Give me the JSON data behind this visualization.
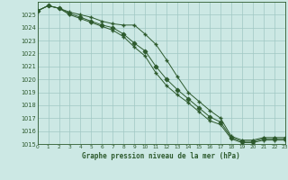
{
  "title": "Graphe pression niveau de la mer (hPa)",
  "bg_color": "#cce8e4",
  "grid_color": "#a0c8c4",
  "line_color": "#2d5a2d",
  "xlim": [
    0,
    23
  ],
  "ylim": [
    1015,
    1026
  ],
  "xtick_labels": [
    "0",
    "1",
    "2",
    "3",
    "4",
    "5",
    "6",
    "7",
    "8",
    "9",
    "10",
    "11",
    "12",
    "13",
    "14",
    "15",
    "16",
    "17",
    "18",
    "19",
    "20",
    "21",
    "22",
    "23"
  ],
  "yticks": [
    1015,
    1016,
    1017,
    1018,
    1019,
    1020,
    1021,
    1022,
    1023,
    1024,
    1025
  ],
  "series": [
    {
      "x": [
        0,
        1,
        2,
        3,
        4,
        5,
        6,
        7,
        8,
        9,
        10,
        11,
        12,
        13,
        14,
        15,
        16,
        17,
        18,
        19,
        20,
        21,
        22,
        23
      ],
      "y": [
        1025.3,
        1025.7,
        1025.5,
        1025.2,
        1025.0,
        1024.8,
        1024.5,
        1024.3,
        1024.2,
        1024.2,
        1023.5,
        1022.7,
        1021.5,
        1020.2,
        1019.0,
        1018.3,
        1017.6,
        1017.0,
        1015.6,
        1015.3,
        1015.3,
        1015.5,
        1015.5,
        1015.5
      ],
      "marker": "+"
    },
    {
      "x": [
        0,
        1,
        2,
        3,
        4,
        5,
        6,
        7,
        8,
        9,
        10,
        11,
        12,
        13,
        14,
        15,
        16,
        17,
        18,
        19,
        20,
        21,
        22,
        23
      ],
      "y": [
        1025.3,
        1025.7,
        1025.5,
        1025.1,
        1024.8,
        1024.5,
        1024.2,
        1024.0,
        1023.5,
        1022.8,
        1022.2,
        1021.0,
        1020.0,
        1019.2,
        1018.5,
        1017.8,
        1017.1,
        1016.7,
        1015.5,
        1015.2,
        1015.2,
        1015.4,
        1015.4,
        1015.4
      ],
      "marker": "D"
    },
    {
      "x": [
        0,
        1,
        2,
        3,
        4,
        5,
        6,
        7,
        8,
        9,
        10,
        11,
        12,
        13,
        14,
        15,
        16,
        17,
        18,
        19,
        20,
        21,
        22,
        23
      ],
      "y": [
        1025.3,
        1025.7,
        1025.5,
        1025.0,
        1024.7,
        1024.4,
        1024.1,
        1023.8,
        1023.3,
        1022.5,
        1021.8,
        1020.5,
        1019.5,
        1018.8,
        1018.2,
        1017.5,
        1016.8,
        1016.5,
        1015.4,
        1015.1,
        1015.1,
        1015.3,
        1015.3,
        1015.3
      ],
      "marker": "+"
    }
  ]
}
